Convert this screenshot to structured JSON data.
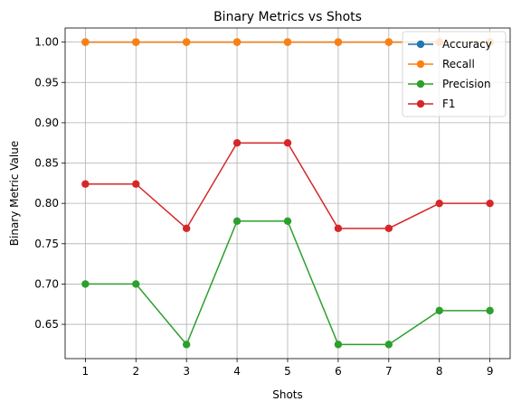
{
  "chart_data": {
    "type": "line",
    "title": "Binary Metrics vs Shots",
    "xlabel": "Shots",
    "ylabel": "Binary Metric Value",
    "x": [
      1,
      2,
      3,
      4,
      5,
      6,
      7,
      8,
      9
    ],
    "xlim": [
      0.6,
      9.4
    ],
    "ylim": [
      0.6075,
      1.0175
    ],
    "xticks": [
      "1",
      "2",
      "3",
      "4",
      "5",
      "6",
      "7",
      "8",
      "9"
    ],
    "yticks": [
      "0.65",
      "0.70",
      "0.75",
      "0.80",
      "0.85",
      "0.90",
      "0.95",
      "1.00"
    ],
    "grid": true,
    "legend_position": "top-right",
    "series": [
      {
        "name": "Accuracy",
        "color": "#1f77b4",
        "values": [
          1.0,
          1.0,
          1.0,
          1.0,
          1.0,
          1.0,
          1.0,
          1.0,
          1.0
        ]
      },
      {
        "name": "Recall",
        "color": "#ff7f0e",
        "values": [
          1.0,
          1.0,
          1.0,
          1.0,
          1.0,
          1.0,
          1.0,
          1.0,
          1.0
        ]
      },
      {
        "name": "Precision",
        "color": "#2ca02c",
        "values": [
          0.7,
          0.7,
          0.625,
          0.778,
          0.778,
          0.625,
          0.625,
          0.667,
          0.667
        ]
      },
      {
        "name": "F1",
        "color": "#d62728",
        "values": [
          0.824,
          0.824,
          0.769,
          0.875,
          0.875,
          0.769,
          0.769,
          0.8,
          0.8
        ]
      }
    ]
  }
}
